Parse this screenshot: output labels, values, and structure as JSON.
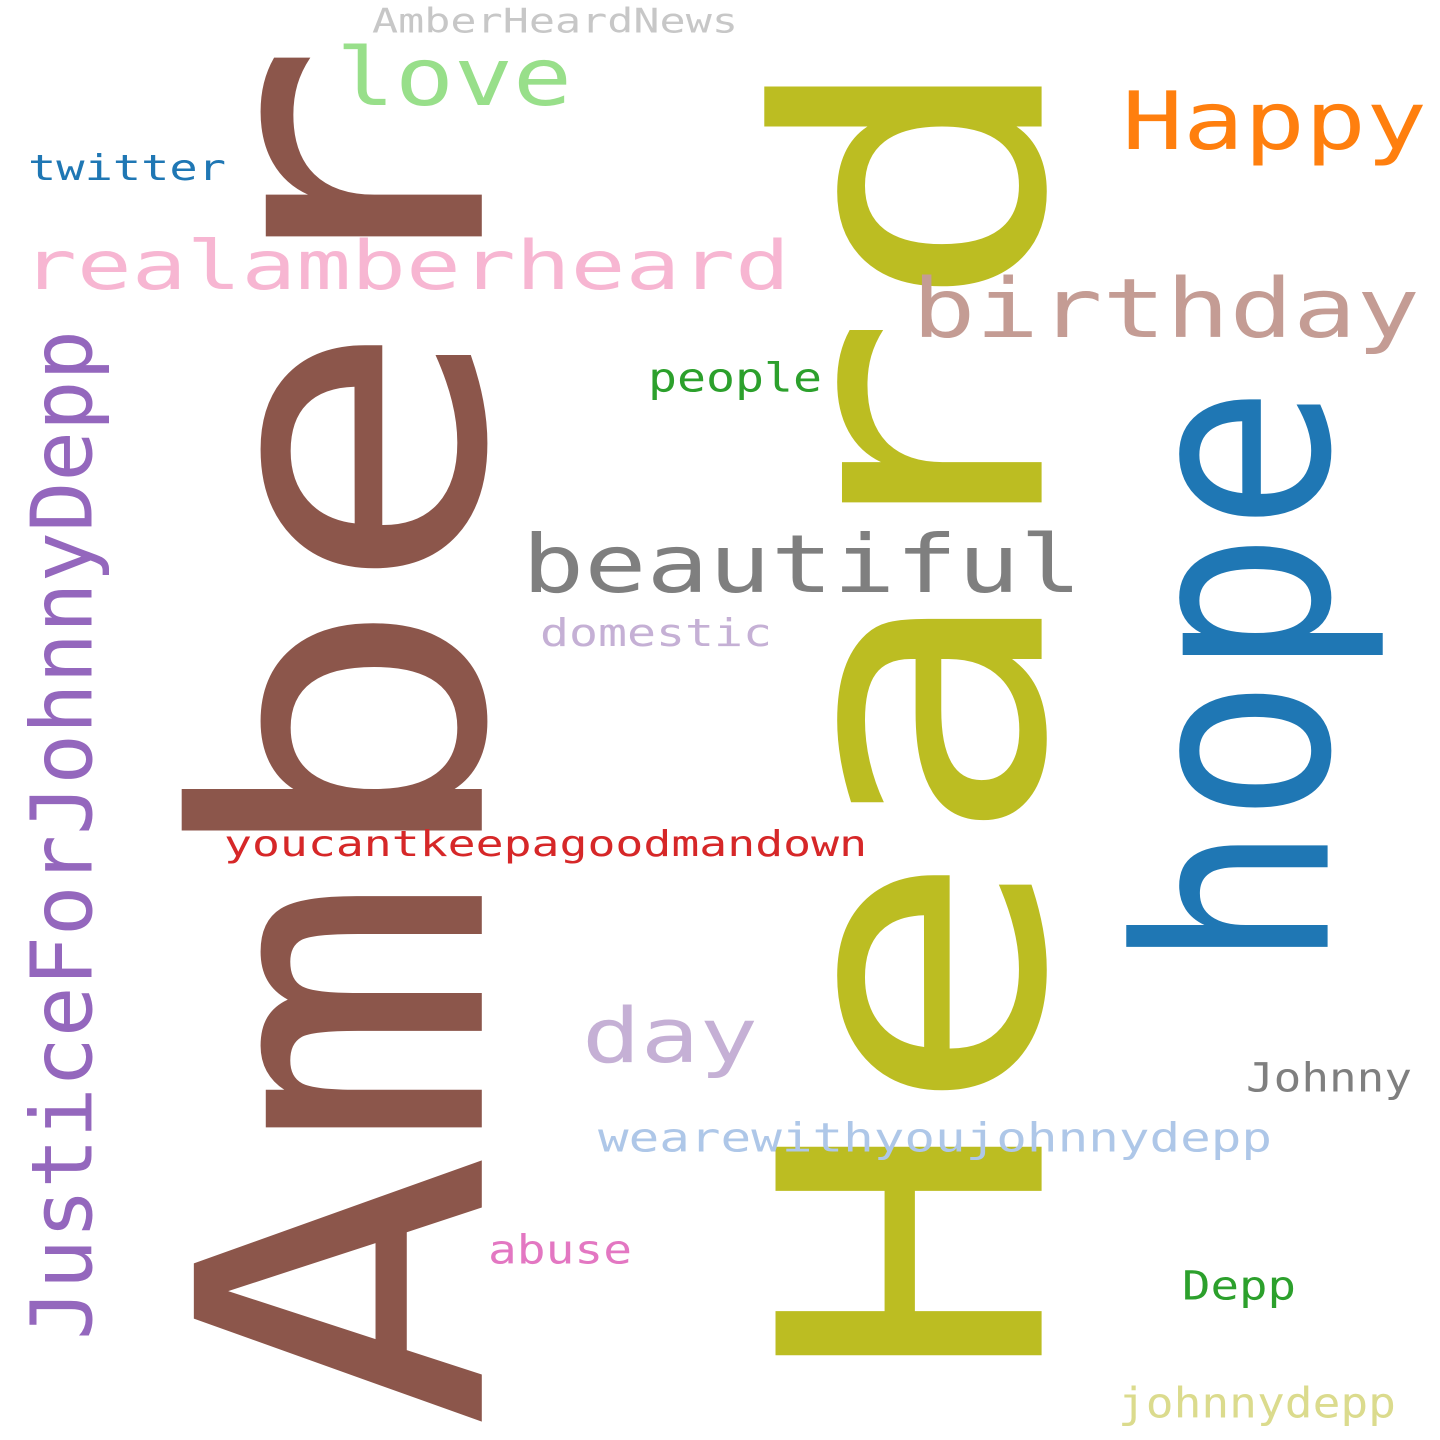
{
  "background": "#ffffff",
  "words": [
    {
      "id": "amber",
      "text": "Amber",
      "color": "#8c564b"
    },
    {
      "id": "heard",
      "text": "Heard",
      "color": "#bcbd22"
    },
    {
      "id": "hope",
      "text": "hope",
      "color": "#1f77b4"
    },
    {
      "id": "justice",
      "text": "JusticeForJohnnyDepp",
      "color": "#9467bd"
    },
    {
      "id": "beautiful",
      "text": "beautiful",
      "color": "#7f7f7f"
    },
    {
      "id": "realamberheard",
      "text": "realamberheard",
      "color": "#f7b6d2"
    },
    {
      "id": "birthday",
      "text": "birthday",
      "color": "#c49c94"
    },
    {
      "id": "happy",
      "text": "Happy",
      "color": "#ff7f0e"
    },
    {
      "id": "love",
      "text": "love",
      "color": "#98df8a"
    },
    {
      "id": "day",
      "text": "day",
      "color": "#c5b0d5"
    },
    {
      "id": "youcant",
      "text": "youcantkeepagoodmandown",
      "color": "#d62728"
    },
    {
      "id": "wearewith",
      "text": "wearewithyoujohnnydepp",
      "color": "#aec7e8"
    },
    {
      "id": "ahnews",
      "text": "AmberHeardNews",
      "color": "#c7c7c7"
    },
    {
      "id": "twitter",
      "text": "twitter",
      "color": "#1f77b4"
    },
    {
      "id": "people",
      "text": "people",
      "color": "#2ca02c"
    },
    {
      "id": "domestic",
      "text": "domestic",
      "color": "#c5b0d5"
    },
    {
      "id": "johnny",
      "text": "Johnny",
      "color": "#7f7f7f"
    },
    {
      "id": "abuse",
      "text": "abuse",
      "color": "#e377c2"
    },
    {
      "id": "depp",
      "text": "Depp",
      "color": "#2ca02c"
    },
    {
      "id": "johnnydepp",
      "text": "johnnydepp",
      "color": "#dbdb8d"
    }
  ]
}
